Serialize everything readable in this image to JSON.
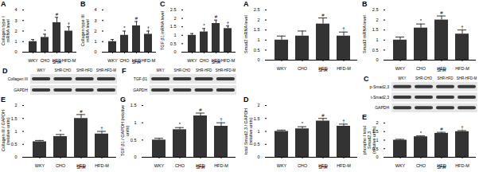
{
  "chart_data": [
    {
      "type": "bar",
      "title": "A",
      "y_label": "Collagen type I mRNA level",
      "categories": [
        "WKY",
        "CHO",
        "HFD",
        "HFD-M"
      ],
      "values": [
        1.0,
        1.4,
        2.8,
        2.0
      ],
      "errors": [
        0.2,
        0.3,
        0.5,
        0.4
      ],
      "annotations": [
        null,
        "*",
        "#",
        "†"
      ],
      "group": {
        "label": "SHR",
        "categories": [
          "CHO",
          "HFD",
          "HFD-M"
        ]
      },
      "color": "#333333",
      "ylim": [
        0,
        4
      ],
      "yticks": [
        0,
        1,
        2,
        3,
        4
      ]
    },
    {
      "type": "bar",
      "title": "B",
      "y_label": "Collagen type III mRNA level",
      "categories": [
        "WKY",
        "CHO",
        "HFD",
        "HFD-M"
      ],
      "values": [
        1.0,
        1.6,
        2.5,
        1.7
      ],
      "errors": [
        0.2,
        0.4,
        0.4,
        0.3
      ],
      "annotations": [
        null,
        "*",
        "#",
        "†"
      ],
      "group": {
        "label": "SHR",
        "categories": [
          "CHO",
          "HFD",
          "HFD-M"
        ]
      },
      "color": "#333333",
      "ylim": [
        0,
        4
      ],
      "yticks": [
        0,
        1,
        2,
        3,
        4
      ]
    },
    {
      "type": "bar",
      "title": "C",
      "y_label": "TGF β1 mRNA level",
      "categories": [
        "WKY",
        "CHO",
        "HFD",
        "HFD-M"
      ],
      "values": [
        1.0,
        1.2,
        1.7,
        1.4
      ],
      "errors": [
        0.1,
        0.2,
        0.2,
        0.15
      ],
      "annotations": [
        null,
        "*",
        "#",
        "†"
      ],
      "group": {
        "label": "SHR",
        "categories": [
          "CHO",
          "HFD",
          "HFD-M"
        ]
      },
      "color": "#333333",
      "ylim": [
        0,
        2.5
      ],
      "yticks": [
        0,
        0.5,
        1,
        1.5,
        2,
        2.5
      ]
    },
    {
      "type": "blot",
      "title": "D",
      "lanes": [
        "WKY",
        "SHR-CHO",
        "SHR-HFD",
        "SHR-HFD-M"
      ],
      "rows": [
        "Collagen III",
        "GAPDH"
      ]
    },
    {
      "type": "bar",
      "title": "E",
      "y_label": "Collagen III / GAPDH (relative units)",
      "categories": [
        "WKY",
        "CHO",
        "HFD",
        "HFD-M"
      ],
      "values": [
        0.6,
        0.8,
        1.5,
        0.9
      ],
      "errors": [
        0.05,
        0.08,
        0.15,
        0.1
      ],
      "annotations": [
        null,
        "*",
        "#",
        "†"
      ],
      "group": {
        "label": "SHR",
        "categories": [
          "CHO",
          "HFD",
          "HFD-M"
        ]
      },
      "color": "#333333",
      "ylim": [
        0,
        2
      ],
      "yticks": [
        0,
        0.5,
        1,
        1.5,
        2
      ]
    },
    {
      "type": "blot",
      "title": "F",
      "lanes": [
        "WKY",
        "SHR-CHO",
        "SHR-HFD",
        "SHR-HFD-M"
      ],
      "rows": [
        "TGF-β1",
        "GAPDH"
      ]
    },
    {
      "type": "bar",
      "title": "G",
      "y_label": "TGF β1 / GAPDH (relative units)",
      "categories": [
        "WKY",
        "CHO",
        "HFD",
        "HFD-M"
      ],
      "values": [
        0.5,
        0.8,
        1.2,
        0.9
      ],
      "errors": [
        0.05,
        0.06,
        0.08,
        0.1
      ],
      "annotations": [
        null,
        "*",
        "#",
        "†"
      ],
      "group": {
        "label": "SHR",
        "categories": [
          "CHO",
          "HFD",
          "HFD-M"
        ]
      },
      "color": "#333333",
      "ylim": [
        0,
        1.5
      ],
      "yticks": [
        0,
        0.5,
        1,
        1.5
      ]
    },
    {
      "type": "bar",
      "title": "A",
      "y_label": "Smad2 mRNA level",
      "categories": [
        "WKY",
        "CHO",
        "HFD",
        "HFD-M"
      ],
      "values": [
        1.0,
        1.2,
        1.8,
        1.2
      ],
      "errors": [
        0.2,
        0.25,
        0.3,
        0.2
      ],
      "annotations": [
        null,
        null,
        "#",
        "†"
      ],
      "group": {
        "label": "SHR",
        "categories": [
          "CHO",
          "HFD",
          "HFD-M"
        ]
      },
      "color": "#333333",
      "ylim": [
        0,
        2.5
      ],
      "yticks": [
        0,
        0.5,
        1,
        1.5,
        2,
        2.5
      ]
    },
    {
      "type": "bar",
      "title": "B",
      "y_label": "Smad3 mRNA level",
      "categories": [
        "WKY",
        "CHO",
        "HFD",
        "HFD-M"
      ],
      "values": [
        1.0,
        1.6,
        2.0,
        1.3
      ],
      "errors": [
        0.15,
        0.2,
        0.2,
        0.2
      ],
      "annotations": [
        null,
        "*",
        "#",
        "†"
      ],
      "group": {
        "label": "SHR",
        "categories": [
          "CHO",
          "HFD",
          "HFD-M"
        ]
      },
      "color": "#333333",
      "ylim": [
        0,
        2.5
      ],
      "yticks": [
        0,
        0.5,
        1,
        1.5,
        2,
        2.5
      ]
    },
    {
      "type": "blot",
      "title": "C",
      "lanes": [
        "WKY",
        "SHR-CHO",
        "SHR-HFD",
        "SHR-HFD-M"
      ],
      "rows": [
        "p-Smad2,3",
        "t-Smad2,3",
        "GAPDH"
      ]
    },
    {
      "type": "bar",
      "title": "D",
      "y_label": "total Smad2,3 / GAPDH (relative units)",
      "categories": [
        "WKY",
        "CHO",
        "HFD",
        "HFD-M"
      ],
      "values": [
        1.0,
        1.1,
        1.4,
        1.2
      ],
      "errors": [
        0.05,
        0.08,
        0.1,
        0.08
      ],
      "annotations": [
        null,
        "*",
        "#",
        "†"
      ],
      "group": {
        "label": "SHR",
        "categories": [
          "CHO",
          "HFD",
          "HFD-M"
        ]
      },
      "color": "#333333",
      "ylim": [
        0,
        2
      ],
      "yticks": [
        0,
        0.5,
        1,
        1.5,
        2
      ]
    },
    {
      "type": "bar",
      "title": "E",
      "y_label": "phospho / total Smad2,3 (relative units)",
      "categories": [
        "WKY",
        "CHO",
        "HFD",
        "HFD-M"
      ],
      "values": [
        1.0,
        1.2,
        1.4,
        1.5
      ],
      "errors": [
        0.05,
        0.05,
        0.06,
        0.06
      ],
      "annotations": [
        null,
        "*",
        "#",
        "†"
      ],
      "group": {
        "label": "SHR",
        "categories": [
          "CHO",
          "HFD",
          "HFD-M"
        ]
      },
      "color": "#333333",
      "ylim": [
        0,
        2
      ],
      "yticks": [
        0,
        0.5,
        1,
        1.5,
        2
      ]
    }
  ]
}
